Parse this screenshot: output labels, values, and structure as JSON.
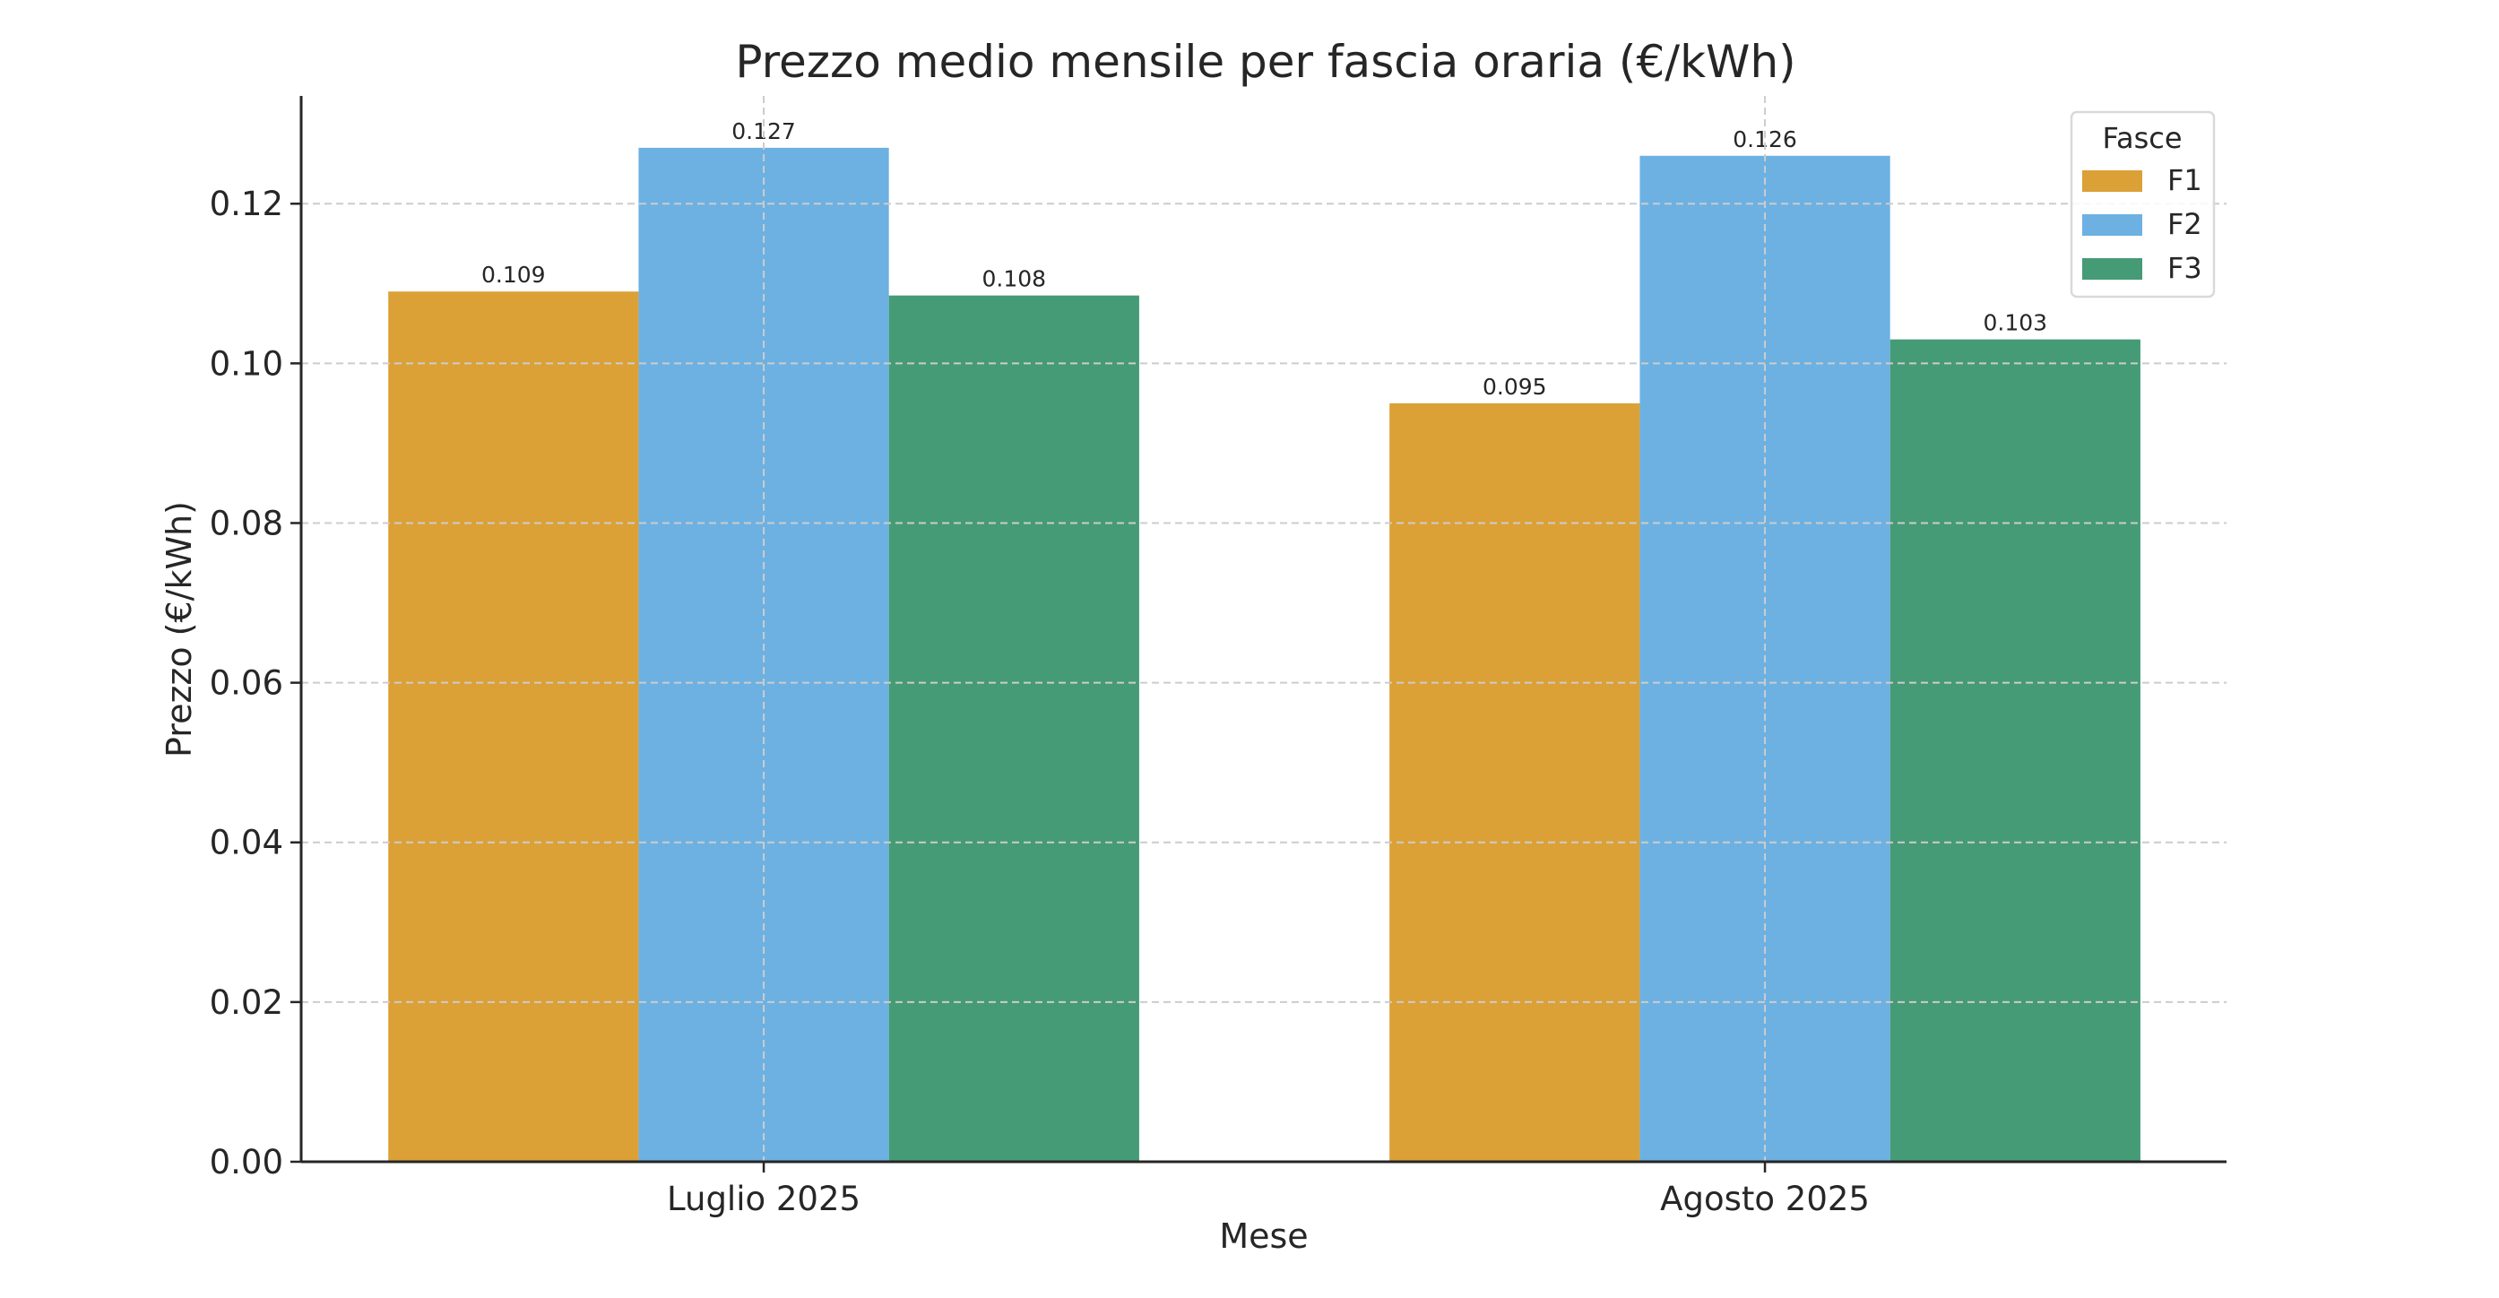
{
  "chart_data": {
    "type": "bar",
    "title": "Prezzo medio mensile per fascia oraria (€/kWh)",
    "xlabel": "Mese",
    "ylabel": "Prezzo (€/kWh)",
    "categories": [
      "Luglio 2025",
      "Agosto 2025"
    ],
    "series": [
      {
        "name": "F1",
        "color": "#DBA137",
        "values": [
          0.109,
          0.095
        ],
        "labels": [
          "0.109",
          "0.095"
        ]
      },
      {
        "name": "F2",
        "color": "#6DB1E2",
        "values": [
          0.127,
          0.126
        ],
        "labels": [
          "0.127",
          "0.126"
        ]
      },
      {
        "name": "F3",
        "color": "#459B76",
        "values": [
          0.1085,
          0.103
        ],
        "labels": [
          "0.108",
          "0.103"
        ]
      }
    ],
    "ylim": [
      0,
      0.1335
    ],
    "yticks": [
      "0.00",
      "0.02",
      "0.04",
      "0.06",
      "0.08",
      "0.10",
      "0.12"
    ],
    "grid": true,
    "legend": {
      "title": "Fasce",
      "placement": "top-right"
    }
  }
}
